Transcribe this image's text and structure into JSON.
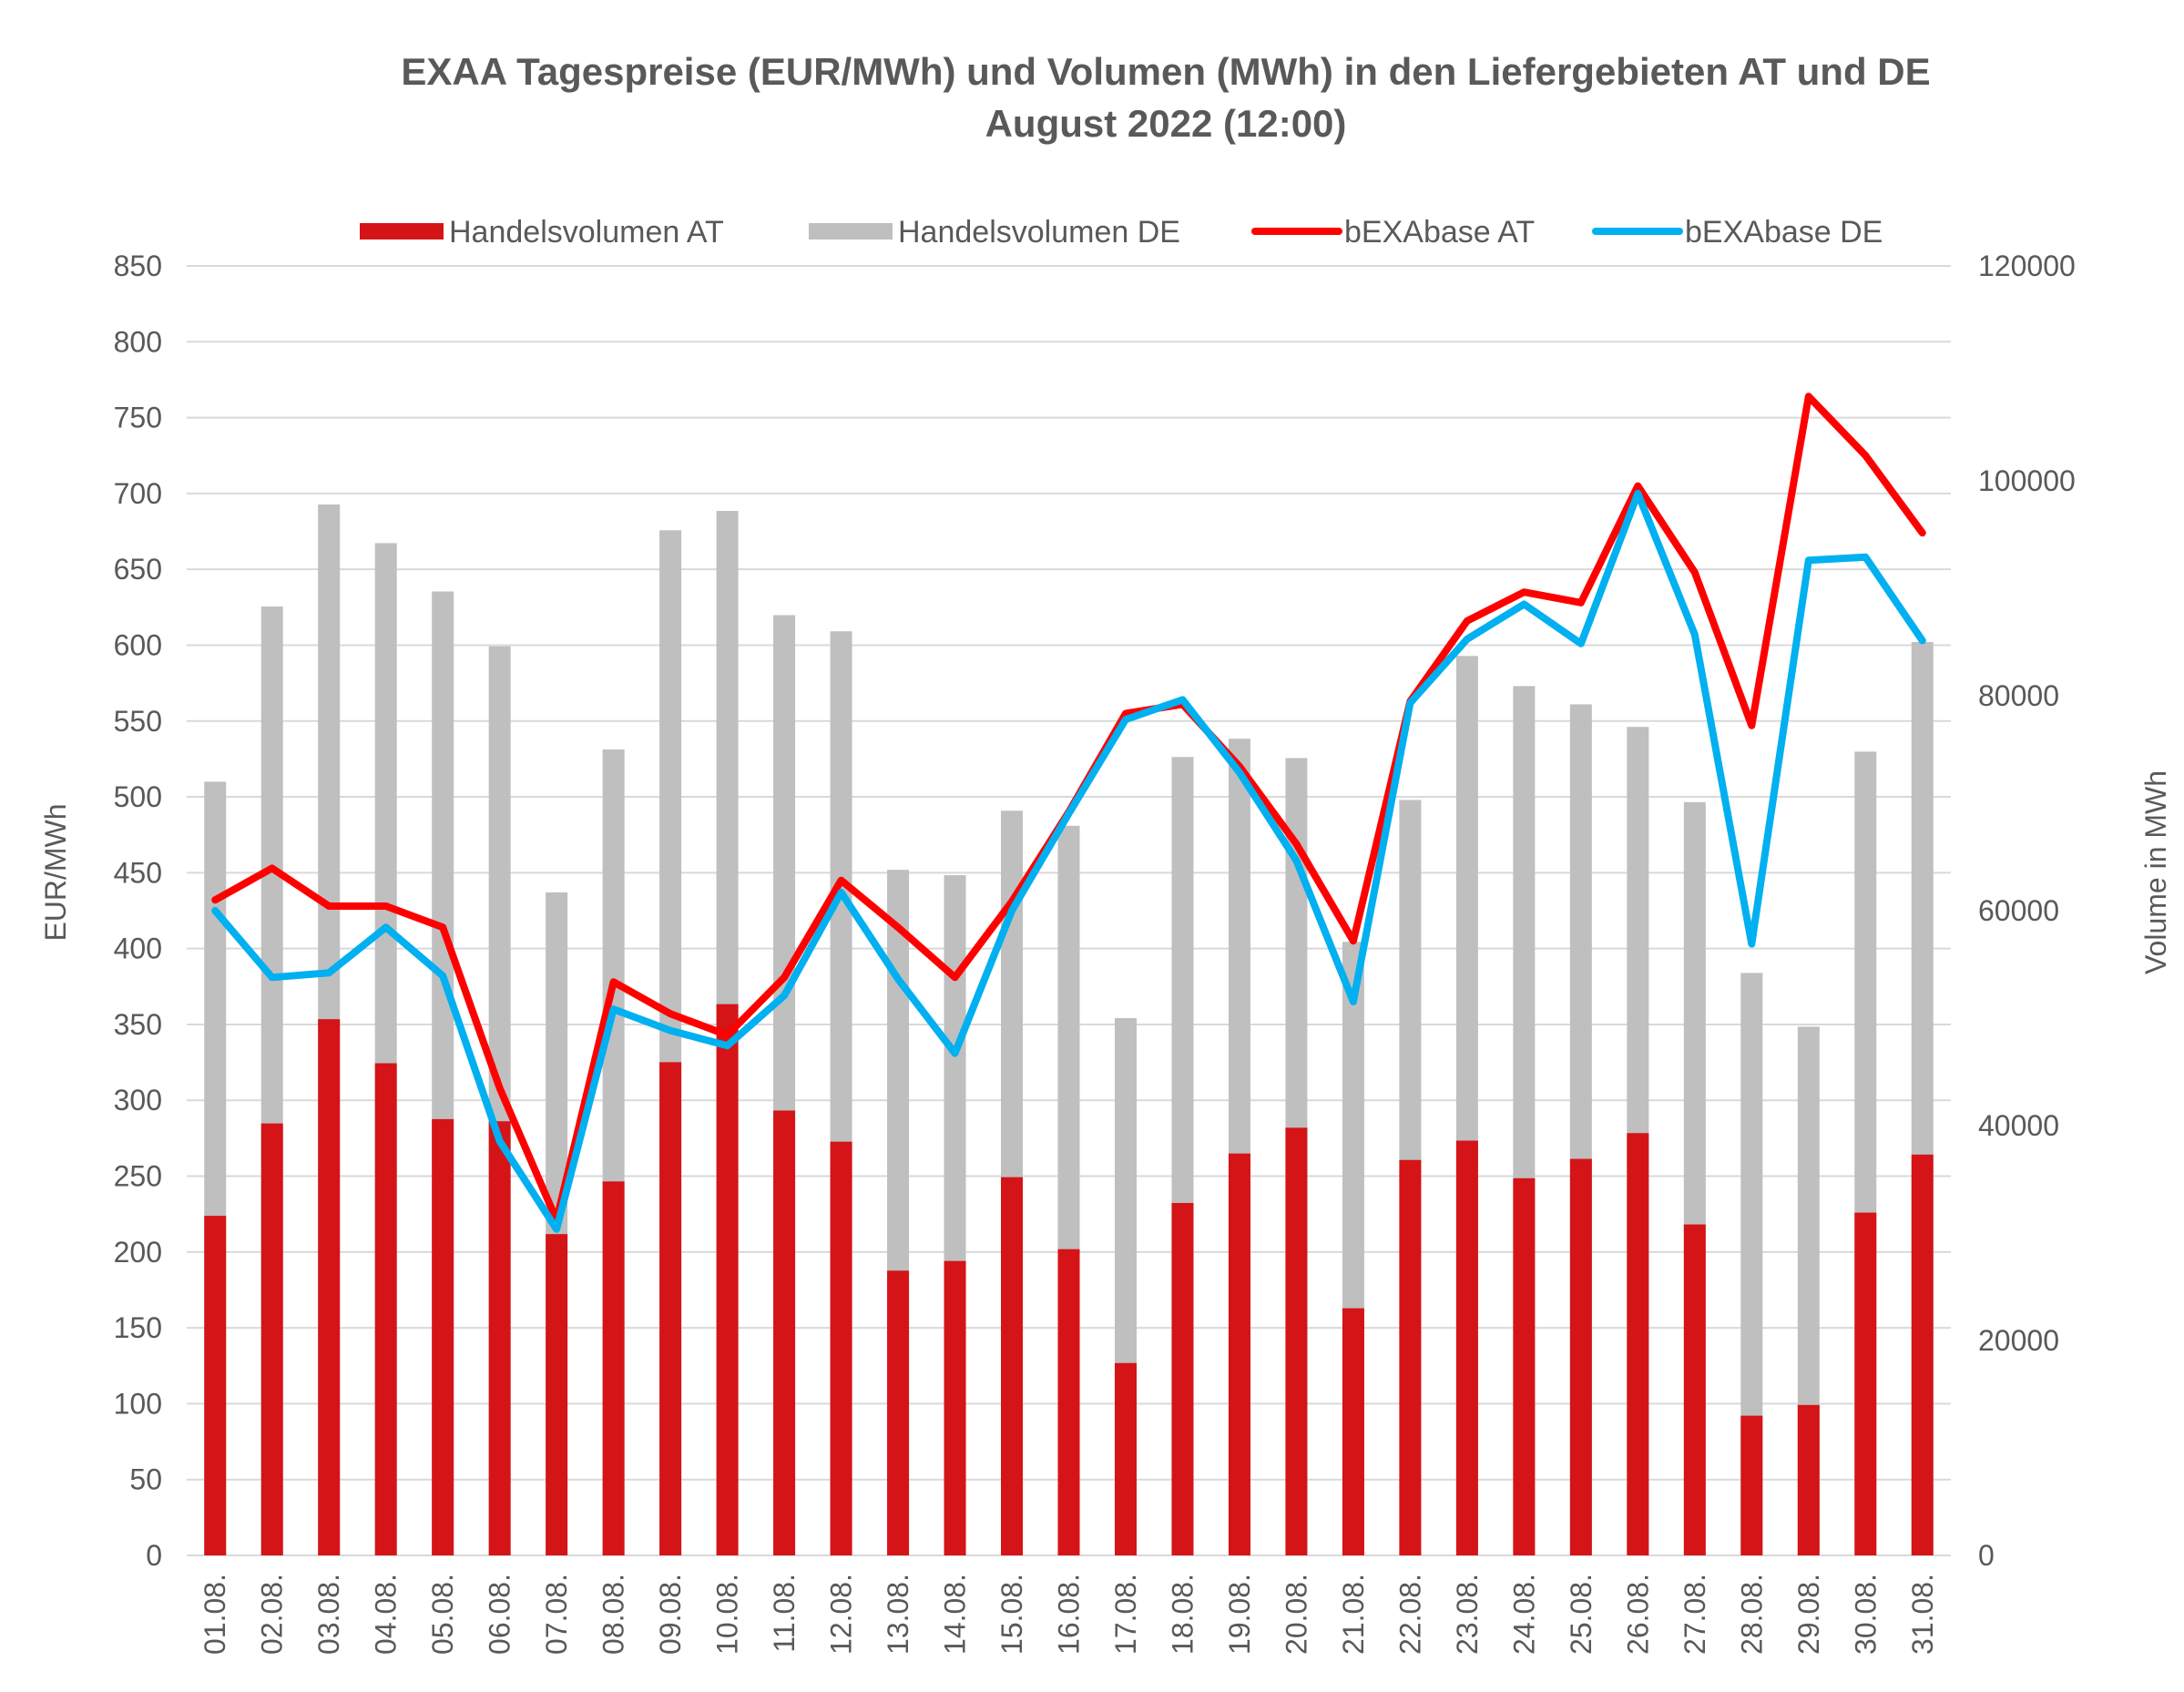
{
  "chart_data": {
    "type": "bar+line",
    "title": "EXAA Tagespreise (EUR/MWh) und Volumen (MWh) in den Liefergebieten AT und DE",
    "subtitle": "August 2022 (12:00)",
    "ylabel_left": "EUR/MWh",
    "ylabel_right": "Volume in MWh",
    "ylim_left": [
      0,
      850
    ],
    "yticks_left": [
      "0",
      "50",
      "100",
      "150",
      "200",
      "250",
      "300",
      "350",
      "400",
      "450",
      "500",
      "550",
      "600",
      "650",
      "700",
      "750",
      "800",
      "850"
    ],
    "ylim_right": [
      0,
      120000
    ],
    "yticks_right": [
      "0",
      "20000",
      "40000",
      "60000",
      "80000",
      "100000",
      "120000"
    ],
    "grid": true,
    "legend_position": "top",
    "categories": [
      "01.08.",
      "02.08.",
      "03.08.",
      "04.08.",
      "05.08.",
      "06.08.",
      "07.08.",
      "08.08.",
      "09.08.",
      "10.08.",
      "11.08.",
      "12.08.",
      "13.08.",
      "14.08.",
      "15.08.",
      "16.08.",
      "17.08.",
      "18.08.",
      "19.08.",
      "20.08.",
      "21.08.",
      "22.08.",
      "23.08.",
      "24.08.",
      "25.08.",
      "26.08.",
      "27.08.",
      "28.08.",
      "29.08.",
      "30.08.",
      "31.08."
    ],
    "series": [
      {
        "name": "Handelsvolumen AT",
        "kind": "bar",
        "axis": "right",
        "color": "#d41417",
        "values": [
          31600,
          40200,
          49900,
          45800,
          40600,
          40400,
          29900,
          34800,
          45900,
          51300,
          41400,
          38500,
          26500,
          27400,
          35200,
          28500,
          17900,
          32800,
          37400,
          39800,
          23000,
          36800,
          38600,
          35100,
          36900,
          39300,
          30800,
          13000,
          14000,
          31900,
          37300
        ]
      },
      {
        "name": "Handelsvolumen DE",
        "kind": "bar",
        "axis": "right",
        "color": "#bfbfbf",
        "values": [
          72000,
          88300,
          97800,
          94200,
          89700,
          84600,
          61700,
          75000,
          95400,
          97200,
          87500,
          86000,
          63800,
          63300,
          69300,
          67900,
          50000,
          74300,
          76000,
          74200,
          57100,
          70300,
          83700,
          80900,
          79200,
          77100,
          70100,
          54200,
          49200,
          74800,
          85000
        ]
      },
      {
        "name": "bEXAbase AT",
        "kind": "line",
        "axis": "left",
        "color": "#ff0000",
        "values": [
          432,
          453,
          428,
          428,
          414,
          308,
          221,
          378,
          357,
          343,
          381,
          445,
          414,
          381,
          431,
          490,
          555,
          561,
          520,
          469,
          405,
          563,
          616,
          635,
          628,
          705,
          648,
          547,
          764,
          725,
          674
        ]
      },
      {
        "name": "bEXAbase DE",
        "kind": "line",
        "axis": "left",
        "color": "#00b0f0",
        "values": [
          425,
          381,
          384,
          414,
          382,
          273,
          215,
          360,
          346,
          336,
          369,
          437,
          380,
          331,
          425,
          489,
          551,
          564,
          516,
          458,
          365,
          562,
          604,
          627,
          601,
          700,
          607,
          403,
          656,
          658,
          603
        ]
      }
    ]
  }
}
